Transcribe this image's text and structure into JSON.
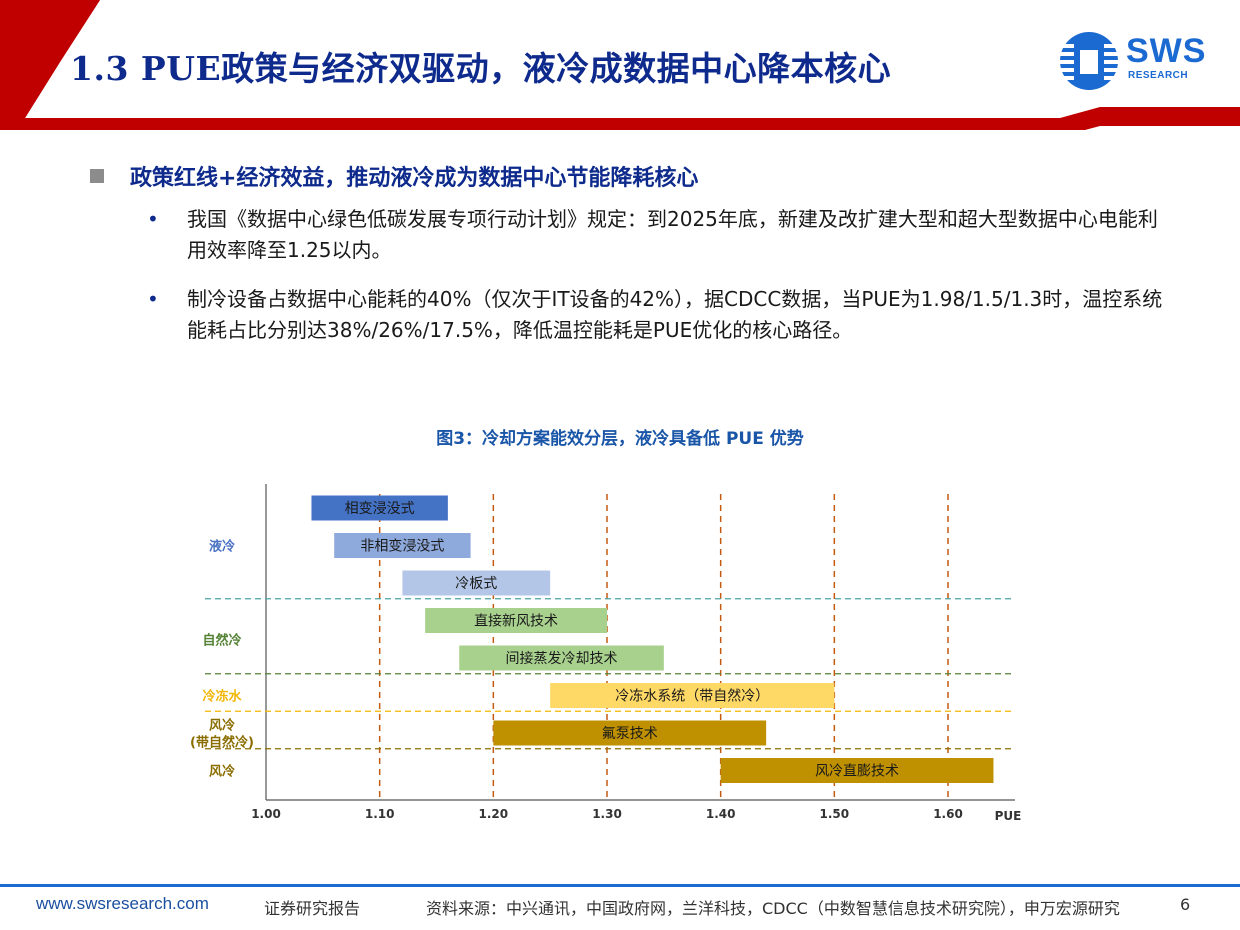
{
  "header": {
    "title": "1.3 PUE政策与经济双驱动，液冷成数据中心降本核心",
    "logo_text": "SWS",
    "logo_sub": "RESEARCH"
  },
  "section": {
    "heading": "政策红线+经济效益，推动液冷成为数据中心节能降耗核心",
    "bullets": [
      {
        "dot": "•",
        "text": "我国《数据中心绿色低碳发展专项行动计划》规定：到2025年底，新建及改扩建大型和超大型数据中心电能利用效率降至1.25以内。"
      },
      {
        "dot": "•",
        "text": "制冷设备占数据中心能耗的40%（仅次于IT设备的42%），据CDCC数据，当PUE为1.98/1.5/1.3时，温控系统能耗占比分别达38%/26%/17.5%，降低温控能耗是PUE优化的核心路径。"
      }
    ]
  },
  "figure": {
    "caption": "图3：冷却方案能效分层，液冷具备低 PUE 优势"
  },
  "chart_data": {
    "type": "range-bar",
    "xlabel": "PUE",
    "xlim": [
      1.0,
      1.6
    ],
    "x_ticks": [
      "1.00",
      "1.10",
      "1.20",
      "1.30",
      "1.40",
      "1.50",
      "1.60"
    ],
    "x_tick_values": [
      1.0,
      1.1,
      1.2,
      1.3,
      1.4,
      1.5,
      1.6
    ],
    "groups": [
      {
        "name": "液冷",
        "color": "#4a72c4",
        "bars": [
          {
            "label": "相变浸没式",
            "start": 1.04,
            "end": 1.16,
            "color": "#4472c4"
          },
          {
            "label": "非相变浸没式",
            "start": 1.06,
            "end": 1.18,
            "color": "#8ea9db"
          },
          {
            "label": "冷板式",
            "start": 1.12,
            "end": 1.25,
            "color": "#b4c6e7"
          }
        ]
      },
      {
        "name": "自然冷",
        "color": "#548235",
        "bars": [
          {
            "label": "直接新风技术",
            "start": 1.14,
            "end": 1.3,
            "color": "#a9d18e"
          },
          {
            "label": "间接蒸发冷却技术",
            "start": 1.17,
            "end": 1.35,
            "color": "#a9d18e"
          }
        ]
      },
      {
        "name": "冷冻水",
        "color": "#f2b705",
        "bars": [
          {
            "label": "冷冻水系统（带自然冷）",
            "start": 1.25,
            "end": 1.5,
            "color": "#ffd966"
          }
        ]
      },
      {
        "name": "风冷\n(带自然冷)",
        "color": "#8a6d00",
        "bars": [
          {
            "label": "氟泵技术",
            "start": 1.2,
            "end": 1.44,
            "color": "#bf9000"
          }
        ]
      },
      {
        "name": "风冷",
        "color": "#8a6d00",
        "bars": [
          {
            "label": "风冷直膨技术",
            "start": 1.4,
            "end": 1.64,
            "color": "#bf9000"
          }
        ]
      }
    ]
  },
  "footer": {
    "site": "www.swsresearch.com",
    "type": "证券研究报告",
    "source": "资料来源：中兴通讯，中国政府网，兰洋科技，CDCC（中数智慧信息技术研究院），申万宏源研究",
    "page": "6"
  },
  "colors": {
    "brand_red": "#c00000",
    "brand_blue": "#0d2a8c",
    "logo_blue": "#1b6ad2"
  }
}
